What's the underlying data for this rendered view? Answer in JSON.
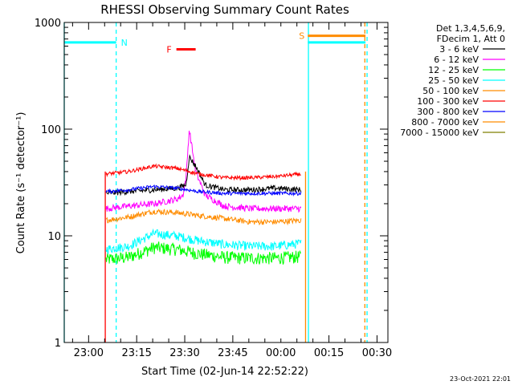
{
  "chart_data": {
    "type": "line",
    "title": "RHESSI Observing Summary Count Rates",
    "xlabel": "Start Time (02-Jun-14 22:52:22)",
    "ylabel": "Count Rate (s⁻¹ detector⁻¹)",
    "yscale": "log",
    "ylim": [
      1,
      1000
    ],
    "xlim_minutes_from_start": [
      0,
      101
    ],
    "x_ticks": [
      {
        "label": "23:00",
        "t": 7.6
      },
      {
        "label": "23:15",
        "t": 22.6
      },
      {
        "label": "23:30",
        "t": 37.6
      },
      {
        "label": "23:45",
        "t": 52.6
      },
      {
        "label": "00:00",
        "t": 67.6
      },
      {
        "label": "00:15",
        "t": 82.6
      },
      {
        "label": "00:30",
        "t": 97.6
      }
    ],
    "y_ticks": [
      {
        "label": "1",
        "v": 1
      },
      {
        "label": "10",
        "v": 10
      },
      {
        "label": "100",
        "v": 100
      },
      {
        "label": "1000",
        "v": 1000
      }
    ],
    "legend_header": [
      "Det 1,3,4,5,6,9,",
      "FDecim 1, Att 0"
    ],
    "legend_position": "top-right",
    "series": [
      {
        "name": "3 - 6 keV",
        "color": "#000000",
        "t": [
          13,
          20,
          28,
          35,
          38,
          39,
          41,
          44,
          50,
          58,
          66,
          74
        ],
        "values": [
          25,
          26,
          27,
          28,
          30,
          55,
          45,
          30,
          27,
          27,
          28,
          27
        ]
      },
      {
        "name": "6 - 12 keV",
        "color": "#ff00ff",
        "t": [
          13,
          20,
          28,
          35,
          37,
          38,
          39,
          41,
          44,
          50,
          58,
          66,
          74
        ],
        "values": [
          18,
          19,
          20,
          22,
          24,
          35,
          100,
          40,
          24,
          19,
          18,
          18,
          18
        ]
      },
      {
        "name": "12 - 25 keV",
        "color": "#00ff00",
        "t": [
          13,
          20,
          28,
          35,
          42,
          50,
          58,
          66,
          74
        ],
        "values": [
          6,
          6.3,
          7.8,
          7.5,
          6.8,
          6.3,
          6.2,
          6.2,
          6.4
        ]
      },
      {
        "name": "25 - 50 keV",
        "color": "#00ffff",
        "t": [
          13,
          20,
          28,
          35,
          42,
          50,
          58,
          66,
          74
        ],
        "values": [
          7.5,
          8,
          10.5,
          10,
          9,
          8.3,
          8,
          8,
          8.5
        ]
      },
      {
        "name": "50 - 100 keV",
        "color": "#ff8c00",
        "t": [
          13,
          20,
          28,
          35,
          42,
          50,
          58,
          66,
          74
        ],
        "values": [
          14,
          15,
          17,
          16.5,
          15.5,
          14.5,
          13.5,
          13.5,
          14
        ]
      },
      {
        "name": "100 - 300 keV",
        "color": "#ff0000",
        "t": [
          13,
          20,
          28,
          35,
          42,
          50,
          58,
          66,
          74
        ],
        "values": [
          38,
          40,
          45,
          43,
          38,
          35,
          35,
          36,
          38
        ]
      },
      {
        "name": "300 - 800 keV",
        "color": "#0000ff",
        "t": [
          13,
          20,
          28,
          35,
          42,
          50,
          58,
          66,
          74
        ],
        "values": [
          26,
          27,
          29,
          28,
          26,
          25,
          25,
          25,
          25
        ]
      },
      {
        "name": "800 - 7000 keV",
        "color": "#ff8c00",
        "t": [],
        "values": []
      },
      {
        "name": "7000 - 15000 keV",
        "color": "#808000",
        "t": [],
        "values": []
      }
    ],
    "annotations": [
      {
        "label": "N",
        "color": "#00ffff",
        "t_start": 0,
        "t_end": 16.2,
        "value": 650
      },
      {
        "label": "S",
        "color": "#ff8c00",
        "t_start": 76,
        "t_end": 94,
        "value": 750
      },
      {
        "label": "F",
        "color": "#ff0000",
        "t_start": 35,
        "t_end": 41,
        "value": 560
      }
    ],
    "extra_bars": [
      {
        "color": "#00ffff",
        "t_start": 76,
        "t_end": 94,
        "value": 650
      }
    ],
    "vertical_lines": [
      {
        "t": 0,
        "color": "#00ffff",
        "style": "solid"
      },
      {
        "t": 12.8,
        "color": "#ff0000",
        "style": "solid"
      },
      {
        "t": 16.2,
        "color": "#00ffff",
        "style": "dashed"
      },
      {
        "t": 75.3,
        "color": "#ff8c00",
        "style": "solid"
      },
      {
        "t": 76.2,
        "color": "#00ffff",
        "style": "solid"
      },
      {
        "t": 93.8,
        "color": "#ff8c00",
        "style": "dashed"
      },
      {
        "t": 94.5,
        "color": "#00ffff",
        "style": "dashed"
      }
    ]
  },
  "footer": {
    "timestamp": "23-Oct-2021 22:01"
  }
}
